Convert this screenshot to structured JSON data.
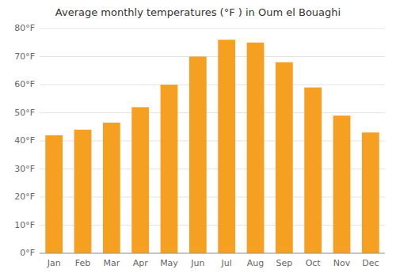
{
  "chart_data": {
    "type": "bar",
    "title": "Average monthly temperatures (°F ) in Oum el Bouaghi",
    "categories": [
      "Jan",
      "Feb",
      "Mar",
      "Apr",
      "May",
      "Jun",
      "Jul",
      "Aug",
      "Sep",
      "Oct",
      "Nov",
      "Dec"
    ],
    "values": [
      42,
      44,
      46.5,
      52,
      60,
      70,
      76,
      75,
      68,
      59,
      49,
      43
    ],
    "color": "#f5a020",
    "ylim": [
      0,
      80
    ],
    "yticks": [
      {
        "value": 0,
        "label": "0°F"
      },
      {
        "value": 10,
        "label": "10°F"
      },
      {
        "value": 20,
        "label": "20°F"
      },
      {
        "value": 30,
        "label": "30°F"
      },
      {
        "value": 40,
        "label": "40°F"
      },
      {
        "value": 50,
        "label": "50°F"
      },
      {
        "value": 60,
        "label": "60°F"
      },
      {
        "value": 70,
        "label": "70°F"
      },
      {
        "value": 80,
        "label": "80°F"
      }
    ],
    "grid": true
  }
}
